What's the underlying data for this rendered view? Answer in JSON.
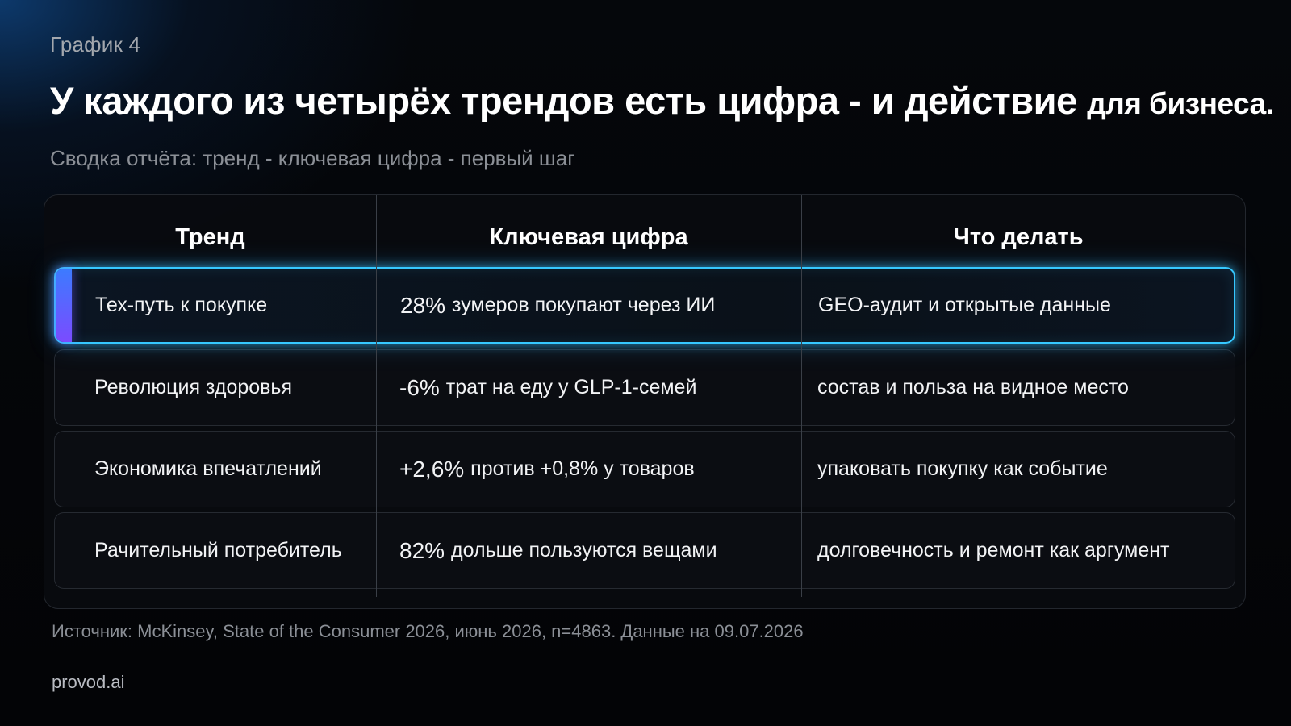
{
  "kicker": "График 4",
  "title": {
    "main": "У каждого из четырёх трендов есть цифра - и действие",
    "tail": "для бизнеса."
  },
  "subtitle": "Сводка отчёта: тренд - ключевая цифра - первый шаг",
  "colors": {
    "background": "#030407",
    "highlight_border": "#36c8ff",
    "accent_gradient_start": "#3c7bff",
    "accent_gradient_end": "#7b4bff"
  },
  "chart_data": {
    "type": "table",
    "columns": [
      "Тренд",
      "Ключевая цифра",
      "Что делать"
    ],
    "highlighted_row": 0,
    "rows": [
      {
        "trend": "Тех-путь к покупке",
        "figure_value": "28%",
        "figure_text": "зумеров покупают через ИИ",
        "action": "GEO-аудит и открытые данные"
      },
      {
        "trend": "Революция здоровья",
        "figure_value": "-6%",
        "figure_text": "трат на еду у GLP-1-семей",
        "action": "состав и польза на видное место"
      },
      {
        "trend": "Экономика впечатлений",
        "figure_value": "+2,6%",
        "figure_text": "против +0,8% у товаров",
        "action": "упаковать покупку как событие"
      },
      {
        "trend": "Рачительный потребитель",
        "figure_value": "82%",
        "figure_text": "дольше пользуются вещами",
        "action": "долговечность и ремонт как аргумент"
      }
    ]
  },
  "source": "Источник: McKinsey, State of the Consumer 2026, июнь 2026, n=4863. Данные на 09.07.2026",
  "brand": "provod.ai"
}
